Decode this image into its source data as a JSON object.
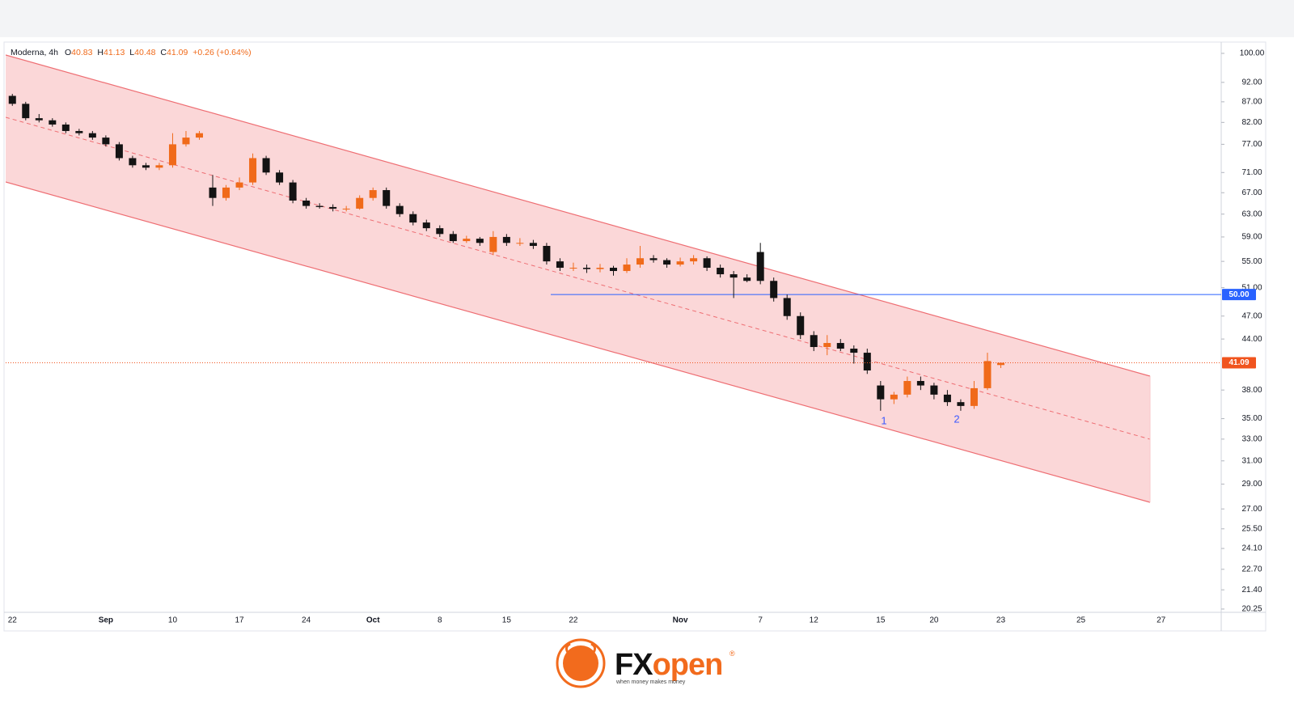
{
  "chart_data": {
    "type": "candlestick",
    "symbol": "Moderna, 4h",
    "legend_ohlc": [
      {
        "label": "O",
        "value": 40.83
      },
      {
        "label": "H",
        "value": 41.13
      },
      {
        "label": "L",
        "value": 40.48
      },
      {
        "label": "C",
        "value": 41.09
      }
    ],
    "change": "+0.26 (+0.64%)",
    "categories": [
      "22",
      null,
      null,
      null,
      null,
      null,
      null,
      "Sep",
      null,
      null,
      null,
      null,
      "10",
      null,
      null,
      null,
      null,
      "17",
      null,
      null,
      null,
      null,
      "24",
      null,
      null,
      null,
      null,
      "Oct",
      null,
      null,
      null,
      null,
      "8",
      null,
      null,
      null,
      null,
      "15",
      null,
      null,
      null,
      null,
      "22",
      null,
      null,
      null,
      null,
      null,
      null,
      null,
      "Nov",
      null,
      null,
      null,
      null,
      null,
      "7",
      null,
      null,
      null,
      "12",
      null,
      null,
      null,
      null,
      "15",
      null,
      null,
      null,
      "20",
      null,
      null,
      null,
      null,
      "23",
      null,
      null,
      null,
      null,
      null,
      "25",
      null,
      null,
      null,
      null,
      null,
      "27",
      null,
      null,
      null,
      null
    ],
    "open": [
      88.5,
      86.5,
      83,
      82.5,
      81.5,
      80,
      79.5,
      78.5,
      77,
      74,
      72.5,
      72,
      72.5,
      77,
      78.5,
      68,
      66,
      68,
      69,
      74,
      71,
      69,
      65.5,
      64.5,
      64.3,
      64,
      64,
      66,
      67.5,
      64.5,
      63,
      61.5,
      60.5,
      59.5,
      58.3,
      58.7,
      56.5,
      59,
      58,
      58,
      57.5,
      55,
      54,
      54,
      53.8,
      54,
      53.5,
      54.5,
      55.5,
      55.2,
      54.5,
      55,
      55.5,
      54,
      53,
      52.5,
      56.5,
      52,
      49.5,
      47,
      44.5,
      43,
      43.5,
      42.8,
      42.3,
      38.5,
      37,
      37.5,
      39,
      38.5,
      37.5,
      36.7,
      36.3,
      38.2,
      40.83,
      null,
      null,
      null,
      null,
      null,
      null,
      null,
      null,
      null,
      null,
      null,
      null,
      null,
      null,
      null,
      null
    ],
    "high": [
      89,
      87,
      84,
      83,
      82,
      80.5,
      80,
      79,
      77.5,
      74.5,
      73,
      73,
      79.5,
      80,
      80,
      70.5,
      68.5,
      70,
      75,
      74.5,
      71.5,
      69.5,
      66,
      65,
      64.8,
      64.5,
      66.5,
      68,
      68,
      65,
      63.5,
      62,
      61,
      60,
      59.2,
      59,
      60,
      59.5,
      58.8,
      58.5,
      58,
      55.5,
      54.8,
      54.5,
      54.6,
      54.3,
      55.5,
      57.5,
      56,
      55.5,
      55.6,
      56,
      55.8,
      54.5,
      53.5,
      53,
      58,
      52.5,
      50,
      47.5,
      45,
      44.5,
      44,
      43.2,
      42.8,
      39,
      37.8,
      39.5,
      39.5,
      38.8,
      38,
      37,
      39,
      42.3,
      41.13,
      null,
      null,
      null,
      null,
      null,
      null,
      null,
      null,
      null,
      null,
      null,
      null,
      null,
      null,
      null,
      null
    ],
    "low": [
      86,
      82.5,
      82,
      81,
      79.5,
      79,
      78,
      76.5,
      73.5,
      72,
      71.5,
      71.5,
      72,
      76.5,
      78,
      64.5,
      65.5,
      67.5,
      68.5,
      70.5,
      68.5,
      65,
      64,
      64,
      63.5,
      63.5,
      63.8,
      65.5,
      64,
      62.5,
      61,
      60,
      59,
      58,
      58,
      57.5,
      56,
      57.5,
      57.5,
      57,
      54.5,
      53.5,
      53.5,
      53.2,
      53.3,
      52.8,
      53.2,
      54,
      54.8,
      54,
      54.2,
      54.5,
      53.5,
      52.5,
      49.5,
      51.8,
      51.5,
      49,
      46.5,
      44,
      42.5,
      42,
      42.5,
      41,
      39.8,
      35.8,
      36.5,
      37.2,
      38,
      37,
      36.3,
      35.8,
      36,
      38,
      40.48,
      null,
      null,
      null,
      null,
      null,
      null,
      null,
      null,
      null,
      null,
      null,
      null,
      null,
      null,
      null,
      null
    ],
    "close": [
      86.5,
      83,
      82.5,
      81.5,
      80,
      79.5,
      78.5,
      77,
      74,
      72.5,
      72,
      72.5,
      77,
      78.5,
      79.5,
      66,
      68,
      69,
      74,
      71,
      69,
      65.5,
      64.5,
      64.3,
      64,
      64,
      66,
      67.5,
      64.5,
      63,
      61.5,
      60.5,
      59.5,
      58.3,
      58.7,
      58,
      59,
      58,
      58,
      57.5,
      55,
      54,
      54,
      53.8,
      54,
      53.5,
      54.5,
      55.5,
      55.2,
      54.5,
      55,
      55.5,
      54,
      53,
      52.5,
      52,
      52,
      49.5,
      47,
      44.5,
      43,
      43.5,
      42.8,
      42.3,
      40.2,
      37,
      37.5,
      39,
      38.5,
      37.5,
      36.7,
      36.3,
      38.2,
      41.3,
      41.09,
      null,
      null,
      null,
      null,
      null,
      null,
      null,
      null,
      null,
      null,
      null,
      null,
      null,
      null,
      null,
      null
    ],
    "up_color": "#f06a1a",
    "down_color": "#131313",
    "y_scale": "log",
    "ylim": [
      20.06,
      103.3
    ],
    "yticks": [
      {
        "value": 100,
        "label": "100.00"
      },
      {
        "value": 92,
        "label": "92.00"
      },
      {
        "value": 87,
        "label": "87.00"
      },
      {
        "value": 82,
        "label": "82.00"
      },
      {
        "value": 77,
        "label": "77.00"
      },
      {
        "value": 71,
        "label": "71.00"
      },
      {
        "value": 67,
        "label": "67.00"
      },
      {
        "value": 63,
        "label": "63.00"
      },
      {
        "value": 59,
        "label": "59.00"
      },
      {
        "value": 55,
        "label": "55.00"
      },
      {
        "value": 51,
        "label": "51.00"
      },
      {
        "value": 47,
        "label": "47.00"
      },
      {
        "value": 44,
        "label": "44.00"
      },
      {
        "value": 38,
        "label": "38.00"
      },
      {
        "value": 35,
        "label": "35.00"
      },
      {
        "value": 33,
        "label": "33.00"
      },
      {
        "value": 31,
        "label": "31.00"
      },
      {
        "value": 29,
        "label": "29.00"
      },
      {
        "value": 27,
        "label": "27.00"
      },
      {
        "value": 25.5,
        "label": "25.50"
      },
      {
        "value": 24.1,
        "label": "24.10"
      },
      {
        "value": 22.7,
        "label": "22.70"
      },
      {
        "value": 21.4,
        "label": "21.40"
      },
      {
        "value": 20.25,
        "label": "20.25"
      }
    ],
    "grid": false,
    "last_price": {
      "value": 41.09,
      "label": "41.09",
      "color": "#f0541e"
    },
    "hline": {
      "value": 50,
      "label": "50.00",
      "color": "#2962ff"
    },
    "annotations": [
      "1",
      "2"
    ]
  },
  "footer": {
    "brand": [
      "FX",
      "open"
    ],
    "registered": "®",
    "tagline": "when money makes money"
  }
}
